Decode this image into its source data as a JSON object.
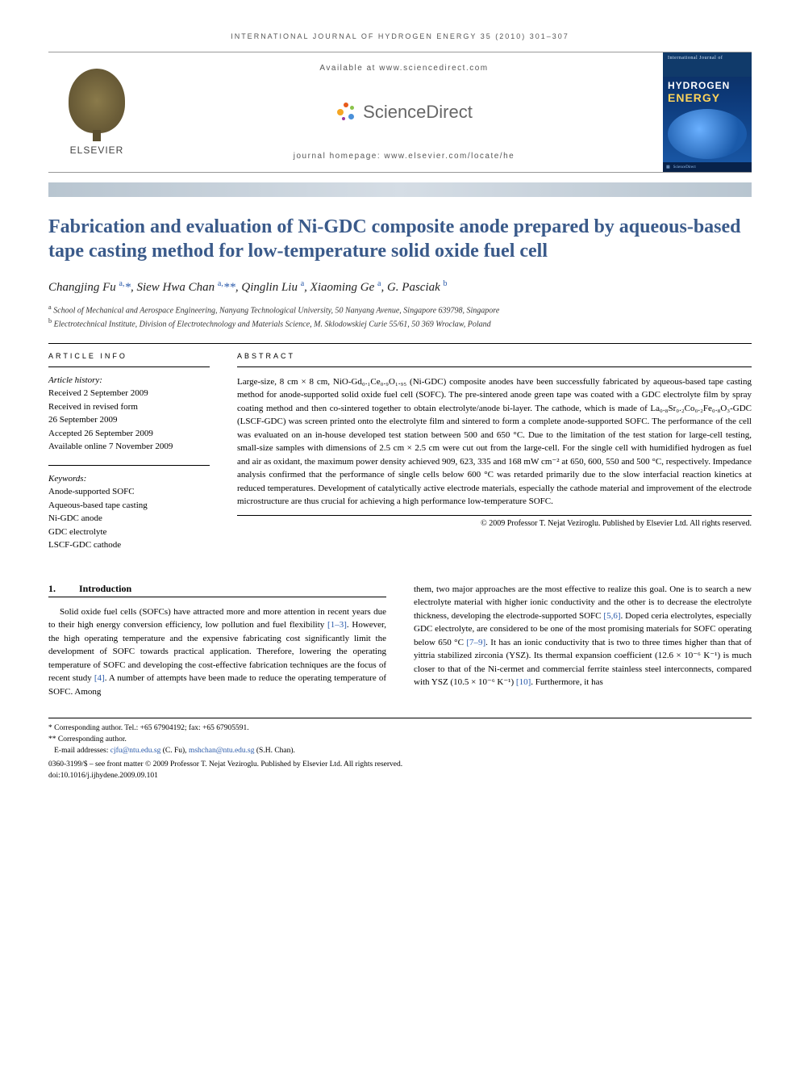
{
  "running_head": "INTERNATIONAL JOURNAL OF HYDROGEN ENERGY 35 (2010) 301–307",
  "header": {
    "publisher": "ELSEVIER",
    "available_at": "Available at www.sciencedirect.com",
    "sd_brand": "ScienceDirect",
    "homepage": "journal homepage: www.elsevier.com/locate/he",
    "cover": {
      "top": "International Journal of",
      "line1": "HYDROGEN",
      "line2": "ENERGY"
    }
  },
  "title": "Fabrication and evaluation of Ni-GDC composite anode prepared by aqueous-based tape casting method for low-temperature solid oxide fuel cell",
  "authors_html": "Changjing Fu <sup>a,</sup><span class='ast'>*</span>, Siew Hwa Chan <sup>a,</sup><span class='ast'>**</span>, Qinglin Liu <sup>a</sup>, Xiaoming Ge <sup>a</sup>, G. Pasciak <sup>b</sup>",
  "affiliations": {
    "a": "School of Mechanical and Aerospace Engineering, Nanyang Technological University, 50 Nanyang Avenue, Singapore 639798, Singapore",
    "b": "Electrotechnical Institute, Division of Electrotechnology and Materials Science, M. Sklodowskiej Curie 55/61, 50 369 Wroclaw, Poland"
  },
  "article_info": {
    "heading": "ARTICLE INFO",
    "history_label": "Article history:",
    "received": "Received 2 September 2009",
    "revised1": "Received in revised form",
    "revised2": "26 September 2009",
    "accepted": "Accepted 26 September 2009",
    "online": "Available online 7 November 2009",
    "keywords_label": "Keywords:",
    "keywords": [
      "Anode-supported SOFC",
      "Aqueous-based tape casting",
      "Ni-GDC anode",
      "GDC electrolyte",
      "LSCF-GDC cathode"
    ]
  },
  "abstract": {
    "heading": "ABSTRACT",
    "text": "Large-size, 8 cm × 8 cm, NiO-Gd₀.₁Ce₀.₉O₁.₉₅ (Ni-GDC) composite anodes have been successfully fabricated by aqueous-based tape casting method for anode-supported solid oxide fuel cell (SOFC). The pre-sintered anode green tape was coated with a GDC electrolyte film by spray coating method and then co-sintered together to obtain electrolyte/anode bi-layer. The cathode, which is made of La₀.₈Sr₀.₂Co₀.₂Fe₀.₈O₃-GDC (LSCF-GDC) was screen printed onto the electrolyte film and sintered to form a complete anode-supported SOFC. The performance of the cell was evaluated on an in-house developed test station between 500 and 650 °C. Due to the limitation of the test station for large-cell testing, small-size samples with dimensions of 2.5 cm × 2.5 cm were cut out from the large-cell. For the single cell with humidified hydrogen as fuel and air as oxidant, the maximum power density achieved 909, 623, 335 and 168 mW cm⁻² at 650, 600, 550 and 500 °C, respectively. Impedance analysis confirmed that the performance of single cells below 600 °C was retarded primarily due to the slow interfacial reaction kinetics at reduced temperatures. Development of catalytically active electrode materials, especially the cathode material and improvement of the electrode microstructure are thus crucial for achieving a high performance low-temperature SOFC.",
    "copyright": "© 2009 Professor T. Nejat Veziroglu. Published by Elsevier Ltd. All rights reserved."
  },
  "intro": {
    "num": "1.",
    "title": "Introduction",
    "col1": "Solid oxide fuel cells (SOFCs) have attracted more and more attention in recent years due to their high energy conversion efficiency, low pollution and fuel flexibility [1–3]. However, the high operating temperature and the expensive fabricating cost significantly limit the development of SOFC towards practical application. Therefore, lowering the operating temperature of SOFC and developing the cost-effective fabrication techniques are the focus of recent study [4]. A number of attempts have been made to reduce the operating temperature of SOFC. Among",
    "col2": "them, two major approaches are the most effective to realize this goal. One is to search a new electrolyte material with higher ionic conductivity and the other is to decrease the electrolyte thickness, developing the electrode-supported SOFC [5,6]. Doped ceria electrolytes, especially GDC electrolyte, are considered to be one of the most promising materials for SOFC operating below 650 °C [7–9]. It has an ionic conductivity that is two to three times higher than that of yittria stabilized zirconia (YSZ). Its thermal expansion coefficient (12.6 × 10⁻⁶ K⁻¹) is much closer to that of the Ni-cermet and commercial ferrite stainless steel interconnects, compared with YSZ (10.5 × 10⁻⁶ K⁻¹) [10]. Furthermore, it has"
  },
  "footnotes": {
    "corr1": "* Corresponding author. Tel.: +65 67904192; fax: +65 67905591.",
    "corr2": "** Corresponding author.",
    "emails_label": "E-mail addresses:",
    "email1": "cjfu@ntu.edu.sg",
    "email1_who": "(C. Fu),",
    "email2": "mshchan@ntu.edu.sg",
    "email2_who": "(S.H. Chan).",
    "issn": "0360-3199/$ – see front matter © 2009 Professor T. Nejat Veziroglu. Published by Elsevier Ltd. All rights reserved.",
    "doi": "doi:10.1016/j.ijhydene.2009.09.101"
  },
  "colors": {
    "title_blue": "#3a5a8a",
    "link_blue": "#2a5aaa",
    "band_gray": "#b8c5d0",
    "cover_blue": "#0d3a7a",
    "cover_yellow": "#ffd45a"
  }
}
